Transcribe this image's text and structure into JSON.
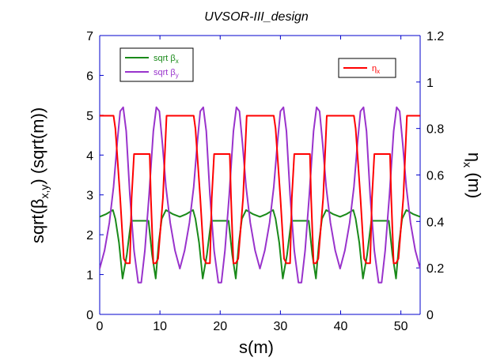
{
  "chart_data": {
    "type": "line",
    "title": "UVSOR-III_design",
    "xlabel": "s(m)",
    "ylabel_left": "sqrt(β",
    "ylabel_left_sub": "x,y",
    "ylabel_left_end": ") (sqrt(m))",
    "ylabel_right": "η",
    "ylabel_right_sub": "x",
    "ylabel_right_end": " (m)",
    "xlim": [
      0,
      53.2
    ],
    "ylim_left": [
      0,
      7
    ],
    "ylim_right": [
      0,
      1.2
    ],
    "x_ticks": [
      "0",
      "10",
      "20",
      "30",
      "40",
      "50"
    ],
    "y_left_ticks": [
      "0",
      "1",
      "2",
      "3",
      "4",
      "5",
      "6",
      "7"
    ],
    "y_right_ticks": [
      "0",
      "0.2",
      "0.4",
      "0.6",
      "0.8",
      "1",
      "1.2"
    ],
    "legend_left": {
      "placement": "top-left",
      "entries": [
        {
          "label": "sqrt β",
          "sub": "x",
          "color": "#1a8a1a"
        },
        {
          "label": "sqrt β",
          "sub": "y",
          "color": "#9933cc"
        }
      ]
    },
    "legend_right": {
      "placement": "top-right",
      "entries": [
        {
          "label": "η",
          "sub": "x",
          "color": "#ff0000"
        }
      ]
    },
    "series": [
      {
        "name": "sqrt βx",
        "axis": "left",
        "color": "#1a8a1a",
        "x": [
          0,
          1.1,
          2.2,
          2.6,
          3.2,
          3.8,
          4.5,
          5.2,
          6.0,
          7.4,
          8.1,
          8.7,
          9.3,
          9.8,
          10.3,
          11.0,
          12.1,
          13.3
        ],
        "y": [
          2.45,
          2.52,
          2.62,
          2.4,
          1.8,
          0.9,
          1.5,
          2.35,
          2.35,
          2.35,
          2.35,
          1.5,
          0.9,
          1.8,
          2.4,
          2.62,
          2.52,
          2.45
        ]
      },
      {
        "name": "sqrt βy",
        "axis": "left",
        "color": "#9933cc",
        "x": [
          0,
          0.8,
          1.6,
          2.3,
          2.9,
          3.4,
          3.9,
          4.4,
          5.0,
          5.7,
          6.4,
          6.9,
          7.5,
          8.2,
          8.9,
          9.4,
          9.9,
          10.4,
          11.0,
          11.7,
          12.5,
          13.3
        ],
        "y": [
          1.15,
          1.6,
          2.3,
          3.2,
          4.3,
          5.1,
          5.2,
          4.6,
          3.0,
          1.6,
          0.8,
          0.8,
          1.6,
          3.0,
          4.6,
          5.2,
          5.1,
          4.3,
          3.2,
          2.3,
          1.6,
          1.15
        ]
      },
      {
        "name": "ηx",
        "axis": "right",
        "color": "#ff0000",
        "x": [
          0,
          2.3,
          2.6,
          3.4,
          4.0,
          4.4,
          5.0,
          5.3,
          5.7,
          8.3,
          8.5,
          8.9,
          9.3,
          9.7,
          10.5,
          11.1,
          13.3
        ],
        "y": [
          0.855,
          0.855,
          0.8,
          0.5,
          0.24,
          0.22,
          0.22,
          0.5,
          0.69,
          0.69,
          0.5,
          0.22,
          0.22,
          0.24,
          0.5,
          0.855,
          0.855
        ]
      }
    ],
    "periods": 4,
    "period_length": 13.3
  }
}
